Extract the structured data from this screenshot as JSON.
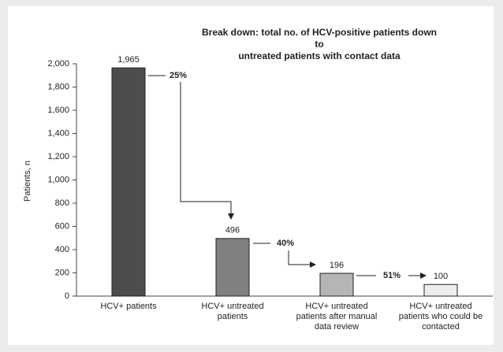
{
  "chart_data": {
    "type": "bar",
    "title": "Break down: total no. of HCV-positive patients down to\nuntreated patients with contact data",
    "y_label": "Patients, n",
    "categories": [
      "HCV+ patients",
      "HCV+ untreated\npatients",
      "HCV+ untreated\npatients after manual\ndata review",
      "HCV+ untreated\npatients who could be\ncontacted"
    ],
    "values": [
      1965,
      496,
      196,
      100
    ],
    "value_labels": [
      "1,965",
      "496",
      "196",
      "100"
    ],
    "colors": [
      "#4d4d4d",
      "#808080",
      "#b5b5b5",
      "#ededed"
    ],
    "ylim": [
      0,
      2000
    ],
    "yticks": [
      0,
      200,
      400,
      600,
      800,
      {
        "value": 1000,
        "label": "1,000"
      },
      {
        "value": 1200,
        "label": "1,200"
      },
      {
        "value": 1400,
        "label": "1,400"
      },
      {
        "value": 1600,
        "label": "1,600"
      },
      {
        "value": 1800,
        "label": "1,800"
      },
      {
        "value": 2000,
        "label": "2,000"
      }
    ],
    "annotations": [
      "25%",
      "40%",
      "51%"
    ]
  }
}
